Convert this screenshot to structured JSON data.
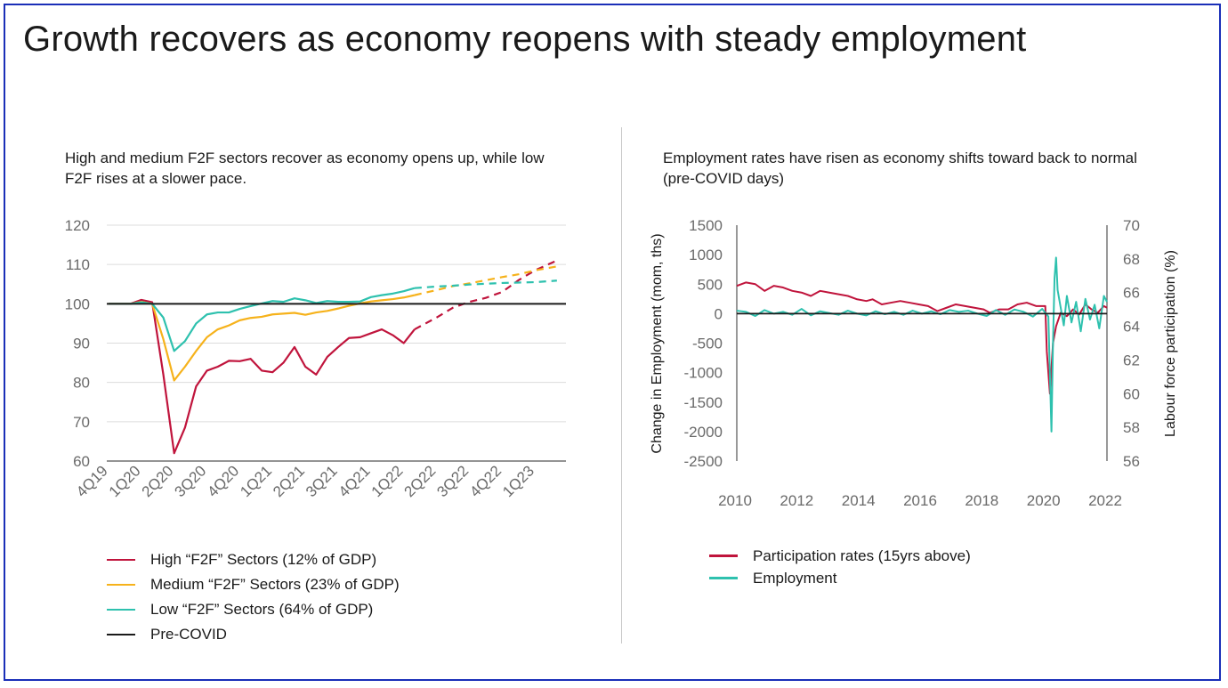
{
  "page": {
    "title": "Growth recovers as economy reopens with steady employment"
  },
  "chart_data": [
    {
      "type": "line",
      "title": "High and medium F2F sectors recover as economy opens up, while low F2F rises at a slower pace.",
      "xlabel": "",
      "ylabel": "",
      "ylim": [
        60,
        120
      ],
      "yticks": [
        "120",
        "110",
        "100",
        "90",
        "80",
        "70",
        "60"
      ],
      "xticks": [
        "4Q19",
        "1Q20",
        "2Q20",
        "3Q20",
        "4Q20",
        "1Q21",
        "2Q21",
        "3Q21",
        "4Q21",
        "1Q22",
        "2Q22",
        "3Q22",
        "4Q22",
        "1Q23"
      ],
      "grid": true,
      "legend_position": "bottom",
      "reference_line": {
        "name": "Pre-COVID",
        "value": 100,
        "color": "#1a1a1a"
      },
      "series": [
        {
          "name": "High “F2F” Sectors (12% of GDP)",
          "color": "#c0143c",
          "x": [
            0,
            0.33,
            0.67,
            1,
            1.33,
            1.67,
            2,
            2.33,
            2.67,
            3,
            3.33,
            3.67,
            4,
            4.33,
            4.67,
            5,
            5.33,
            5.67,
            6,
            6.33,
            6.67,
            7,
            7.33,
            7.67,
            8,
            8.33,
            8.67,
            9,
            9.33
          ],
          "values": [
            100,
            100,
            100,
            101,
            100.4,
            82,
            62,
            68.5,
            79,
            83,
            84,
            85.5,
            85.4,
            86,
            83,
            82.6,
            85,
            89,
            84,
            82,
            86.5,
            89,
            91.3,
            91.5,
            92.5,
            93.5,
            92,
            90,
            93.5
          ],
          "projection": {
            "x": [
              9.33,
              10,
              10.5,
              11,
              11.5,
              12,
              12.5,
              13,
              13.67
            ],
            "values": [
              93.5,
              96.5,
              99,
              100.5,
              101.5,
              103,
              106,
              108.5,
              111
            ]
          }
        },
        {
          "name": "Medium “F2F” Sectors (23% of GDP)",
          "color": "#f6b21b",
          "x": [
            0,
            0.33,
            0.67,
            1,
            1.33,
            1.67,
            2,
            2.33,
            2.67,
            3,
            3.33,
            3.67,
            4,
            4.33,
            4.67,
            5,
            5.33,
            5.67,
            6,
            6.33,
            6.67,
            7,
            7.33,
            7.67,
            8,
            8.33,
            8.67,
            9,
            9.33
          ],
          "values": [
            100,
            100,
            100,
            100.5,
            100,
            91,
            80.5,
            84,
            88,
            91.5,
            93.5,
            94.5,
            95.8,
            96.4,
            96.7,
            97.3,
            97.5,
            97.7,
            97.2,
            97.8,
            98.2,
            98.8,
            99.5,
            100.1,
            100.6,
            100.9,
            101.2,
            101.6,
            102.2
          ],
          "projection": {
            "x": [
              9.33,
              10,
              10.5,
              11,
              11.5,
              12,
              12.5,
              13,
              13.67
            ],
            "values": [
              102.2,
              103.5,
              104.5,
              105.2,
              106,
              106.8,
              107.5,
              108.5,
              109.5
            ]
          }
        },
        {
          "name": "Low “F2F” Sectors (64% of GDP)",
          "color": "#2ec1ae",
          "x": [
            0,
            0.33,
            0.67,
            1,
            1.33,
            1.67,
            2,
            2.33,
            2.67,
            3,
            3.33,
            3.67,
            4,
            4.33,
            4.67,
            5,
            5.33,
            5.67,
            6,
            6.33,
            6.67,
            7,
            7.33,
            7.67,
            8,
            8.33,
            8.67,
            9,
            9.33
          ],
          "values": [
            100,
            100,
            100,
            100.4,
            100,
            96.5,
            88,
            90.5,
            95,
            97.3,
            97.8,
            97.8,
            98.7,
            99.4,
            100.1,
            100.7,
            100.5,
            101.4,
            100.9,
            100.2,
            100.7,
            100.5,
            100.5,
            100.6,
            101.7,
            102.2,
            102.6,
            103.2,
            104
          ],
          "projection": {
            "x": [
              9.33,
              10,
              10.5,
              11,
              11.5,
              12,
              12.5,
              13,
              13.67
            ],
            "values": [
              104,
              104.4,
              104.6,
              104.9,
              105.1,
              105.3,
              105.4,
              105.5,
              105.9
            ]
          }
        }
      ]
    },
    {
      "type": "line",
      "title": "Employment rates have risen as economy shifts toward back to normal (pre-COVID days)",
      "xlabel": "",
      "ylabel": "Change in Employment (mom, ths)",
      "ylabel_right": "Labour force participation (%)",
      "ylim": [
        -2500,
        1500
      ],
      "ylim_right": [
        56,
        70
      ],
      "yticks": [
        "1500",
        "1000",
        "500",
        "0",
        "-500",
        "-1000",
        "-1500",
        "-2000",
        "-2500"
      ],
      "yticks_right": [
        "70",
        "68",
        "66",
        "64",
        "62",
        "60",
        "58",
        "56"
      ],
      "xlim": [
        2010,
        2022
      ],
      "xticks": [
        "2010",
        "2012",
        "2014",
        "2016",
        "2018",
        "2020",
        "2022"
      ],
      "grid": false,
      "legend_position": "bottom",
      "series": [
        {
          "name": "Participation rates (15yrs above)",
          "axis": "right",
          "color": "#c0143c",
          "x": [
            2010,
            2010.3,
            2010.6,
            2010.9,
            2011.2,
            2011.5,
            2011.8,
            2012.1,
            2012.4,
            2012.7,
            2013,
            2013.3,
            2013.6,
            2013.9,
            2014.2,
            2014.4,
            2014.7,
            2015,
            2015.3,
            2015.6,
            2015.9,
            2016.2,
            2016.5,
            2016.8,
            2017.1,
            2017.4,
            2017.7,
            2018,
            2018.2,
            2018.5,
            2018.8,
            2019.1,
            2019.4,
            2019.7,
            2020,
            2020.05,
            2020.15,
            2020.25,
            2020.35,
            2020.5,
            2020.7,
            2020.9,
            2021.1,
            2021.3,
            2021.5,
            2021.7,
            2021.9,
            2022
          ],
          "values": [
            66.4,
            66.6,
            66.5,
            66.1,
            66.4,
            66.3,
            66.1,
            66.0,
            65.8,
            66.1,
            66.0,
            65.9,
            65.8,
            65.6,
            65.5,
            65.6,
            65.3,
            65.4,
            65.5,
            65.4,
            65.3,
            65.2,
            64.9,
            65.1,
            65.3,
            65.2,
            65.1,
            65.0,
            64.8,
            65.0,
            65.0,
            65.3,
            65.4,
            65.2,
            65.2,
            62.5,
            60.0,
            63.0,
            64.0,
            64.8,
            64.6,
            65.0,
            64.7,
            65.3,
            65.0,
            64.8,
            65.2,
            65.1
          ]
        },
        {
          "name": "Employment",
          "axis": "left",
          "color": "#2ec1ae",
          "x": [
            2010,
            2010.3,
            2010.6,
            2010.9,
            2011.2,
            2011.5,
            2011.8,
            2012.1,
            2012.4,
            2012.7,
            2013,
            2013.3,
            2013.6,
            2013.9,
            2014.2,
            2014.5,
            2014.8,
            2015.1,
            2015.4,
            2015.7,
            2016,
            2016.3,
            2016.6,
            2016.9,
            2017.2,
            2017.5,
            2017.8,
            2018.1,
            2018.4,
            2018.7,
            2019,
            2019.3,
            2019.6,
            2019.9,
            2020.1,
            2020.2,
            2020.25,
            2020.3,
            2020.35,
            2020.4,
            2020.5,
            2020.6,
            2020.7,
            2020.85,
            2021,
            2021.15,
            2021.3,
            2021.45,
            2021.6,
            2021.75,
            2021.9,
            2022
          ],
          "values": [
            50,
            30,
            -40,
            60,
            0,
            30,
            -20,
            80,
            -30,
            40,
            10,
            -20,
            50,
            0,
            -30,
            40,
            -10,
            30,
            -20,
            50,
            0,
            40,
            -10,
            60,
            30,
            50,
            0,
            -40,
            60,
            -20,
            70,
            30,
            -50,
            80,
            -50,
            -2000,
            -500,
            600,
            950,
            400,
            100,
            -200,
            300,
            -150,
            200,
            -300,
            250,
            -100,
            150,
            -250,
            300,
            200
          ]
        }
      ]
    }
  ]
}
